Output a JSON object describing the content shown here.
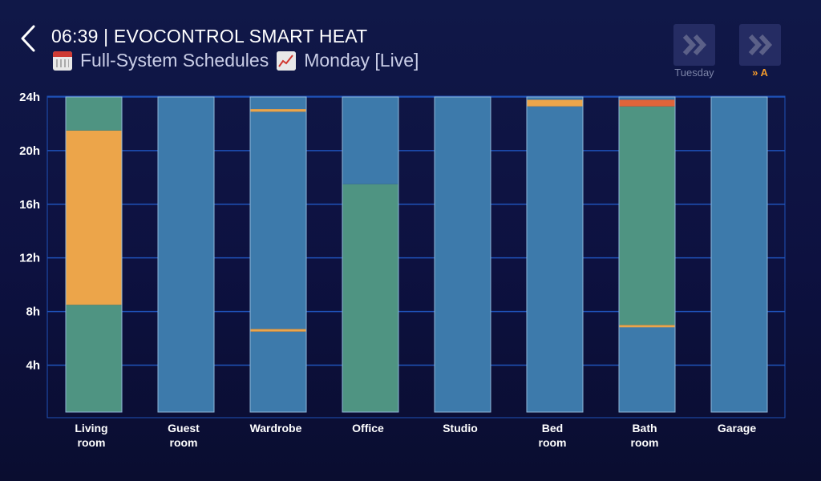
{
  "header": {
    "title": "06:39 | EVOCONTROL SMART HEAT",
    "subtitle_left": "Full-System Schedules",
    "subtitle_right": "Monday [Live]",
    "subtitle_left_icon": "calendar-icon",
    "subtitle_right_icon": "chart-increasing-icon"
  },
  "nav": {
    "next_day_label": "Tuesday",
    "auto_label": "» A",
    "next_day_color": "#7c84a8",
    "auto_color": "#f39a2c"
  },
  "colors": {
    "blue": "#3d7aab",
    "green": "#4f9482",
    "orange": "#eca54a",
    "red": "#e0643a",
    "grid": "#1f52b8"
  },
  "chart_data": {
    "type": "bar",
    "stacked": true,
    "categories": [
      "Living room",
      "Guest room",
      "Wardrobe",
      "Office",
      "Studio",
      "Bed room",
      "Bath room",
      "Garage"
    ],
    "y_ticks": [
      "4h",
      "8h",
      "12h",
      "16h",
      "20h",
      "24h"
    ],
    "ylim": [
      0.5,
      24
    ],
    "unit": "h",
    "grid": true,
    "bars": [
      {
        "category": "Living room",
        "segments": [
          {
            "from": 0,
            "to": 8.5,
            "color": "green"
          },
          {
            "from": 8.5,
            "to": 21.5,
            "color": "orange"
          },
          {
            "from": 21.5,
            "to": 24.5,
            "color": "green"
          }
        ]
      },
      {
        "category": "Guest room",
        "segments": [
          {
            "from": 0,
            "to": 24.5,
            "color": "blue"
          }
        ]
      },
      {
        "category": "Wardrobe",
        "segments": [
          {
            "from": 0,
            "to": 6.5,
            "color": "blue"
          },
          {
            "from": 6.5,
            "to": 6.7,
            "color": "orange"
          },
          {
            "from": 6.7,
            "to": 22.9,
            "color": "blue"
          },
          {
            "from": 22.9,
            "to": 23.1,
            "color": "orange"
          },
          {
            "from": 23.1,
            "to": 24.5,
            "color": "blue"
          }
        ]
      },
      {
        "category": "Office",
        "segments": [
          {
            "from": 0,
            "to": 17.5,
            "color": "green"
          },
          {
            "from": 17.5,
            "to": 24.5,
            "color": "blue"
          }
        ]
      },
      {
        "category": "Studio",
        "segments": [
          {
            "from": 0,
            "to": 24.5,
            "color": "blue"
          }
        ]
      },
      {
        "category": "Bed room",
        "segments": [
          {
            "from": 0,
            "to": 23.3,
            "color": "blue"
          },
          {
            "from": 23.3,
            "to": 23.8,
            "color": "orange"
          },
          {
            "from": 23.8,
            "to": 24.5,
            "color": "blue"
          }
        ]
      },
      {
        "category": "Bath room",
        "segments": [
          {
            "from": 0,
            "to": 6.9,
            "color": "blue"
          },
          {
            "from": 6.9,
            "to": 7.0,
            "color": "orange"
          },
          {
            "from": 7.0,
            "to": 23.3,
            "color": "green"
          },
          {
            "from": 23.3,
            "to": 23.8,
            "color": "red"
          },
          {
            "from": 23.8,
            "to": 24.5,
            "color": "blue"
          }
        ]
      },
      {
        "category": "Garage",
        "segments": [
          {
            "from": 0,
            "to": 24.5,
            "color": "blue"
          }
        ]
      }
    ]
  }
}
